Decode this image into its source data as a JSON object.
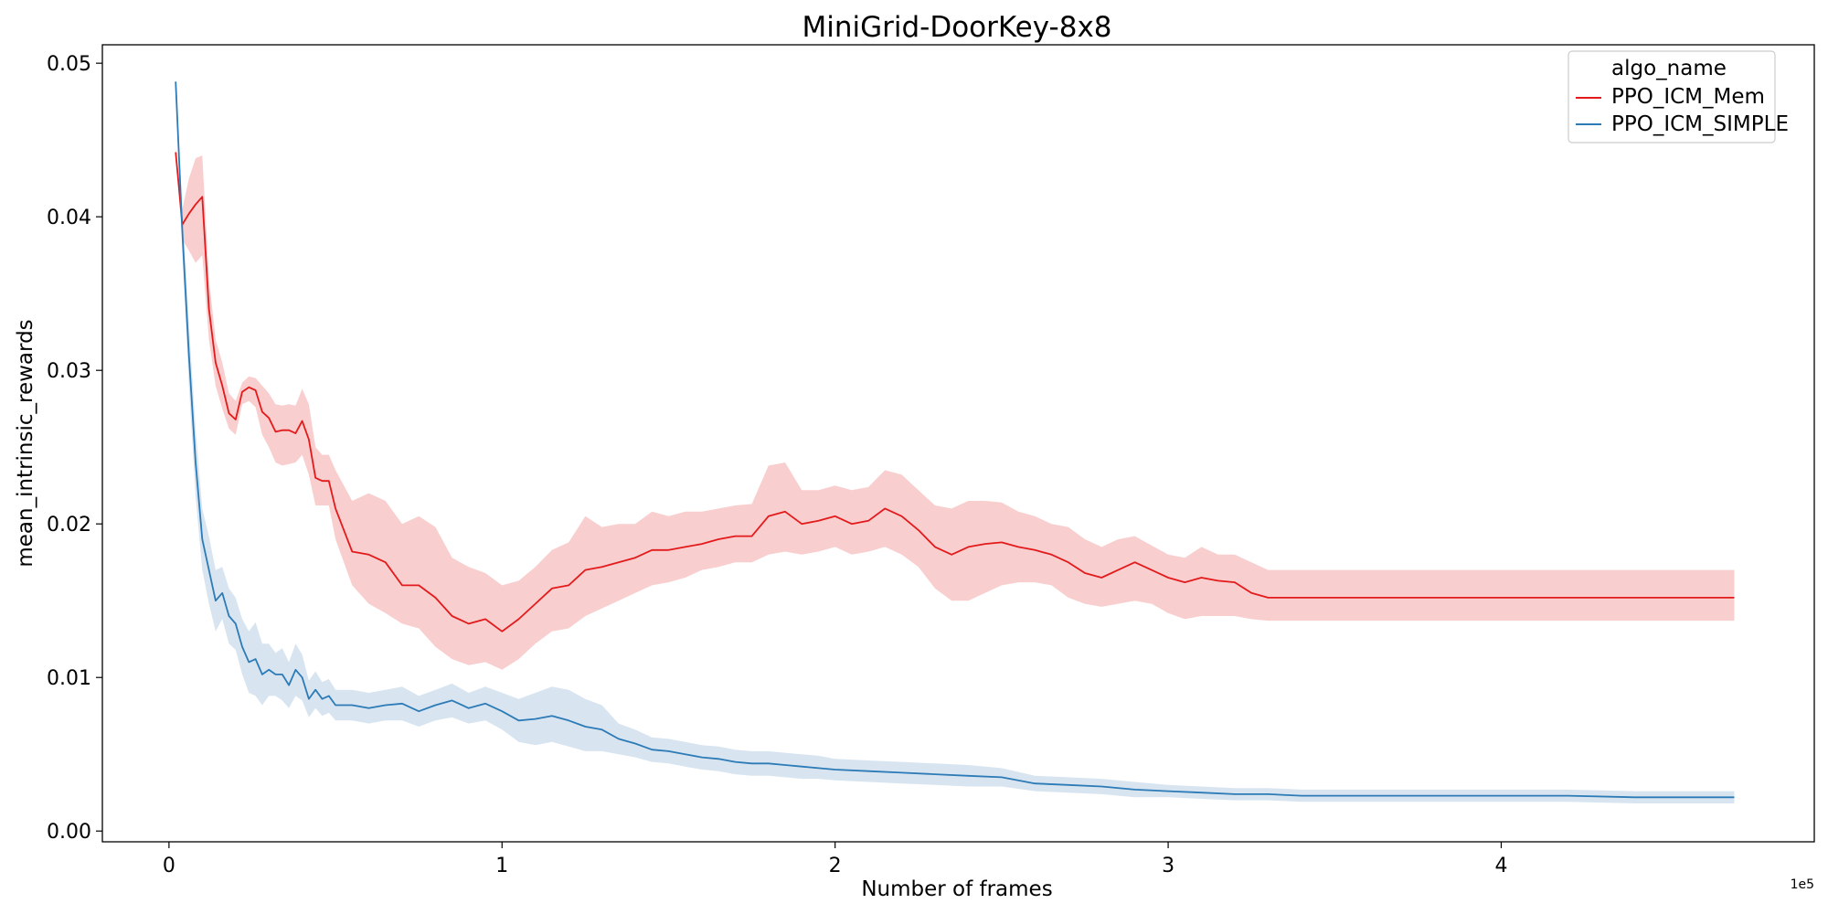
{
  "chart_data": {
    "type": "line",
    "title": "MiniGrid-DoorKey-8x8",
    "xlabel": "Number of frames",
    "ylabel": "mean_intrinsic_rewards",
    "x_offset_label": "1e5",
    "xlim": [
      -0.2,
      4.94
    ],
    "ylim": [
      -0.0007,
      0.0512
    ],
    "x_ticks": [
      0,
      1,
      2,
      3,
      4
    ],
    "y_ticks": [
      0.0,
      0.01,
      0.02,
      0.03,
      0.04,
      0.05
    ],
    "x_tick_labels": [
      "0",
      "1",
      "2",
      "3",
      "4"
    ],
    "y_tick_labels": [
      "0.00",
      "0.01",
      "0.02",
      "0.03",
      "0.04",
      "0.05"
    ],
    "grid": false,
    "legend": {
      "title": "algo_name",
      "placement": "top-right"
    },
    "series": [
      {
        "name": "PPO_ICM_Mem",
        "color": "#e31a1c",
        "band_color": "#f4a6a6",
        "x": [
          0.02,
          0.04,
          0.06,
          0.08,
          0.1,
          0.12,
          0.14,
          0.16,
          0.18,
          0.2,
          0.22,
          0.24,
          0.26,
          0.28,
          0.3,
          0.32,
          0.34,
          0.36,
          0.38,
          0.4,
          0.42,
          0.44,
          0.46,
          0.48,
          0.5,
          0.55,
          0.6,
          0.65,
          0.7,
          0.75,
          0.8,
          0.85,
          0.9,
          0.95,
          1.0,
          1.05,
          1.1,
          1.15,
          1.2,
          1.25,
          1.3,
          1.35,
          1.4,
          1.45,
          1.5,
          1.55,
          1.6,
          1.65,
          1.7,
          1.75,
          1.8,
          1.85,
          1.9,
          1.95,
          2.0,
          2.05,
          2.1,
          2.15,
          2.2,
          2.25,
          2.3,
          2.35,
          2.4,
          2.45,
          2.5,
          2.55,
          2.6,
          2.65,
          2.7,
          2.75,
          2.8,
          2.85,
          2.9,
          2.95,
          3.0,
          3.05,
          3.1,
          3.15,
          3.2,
          3.25,
          3.3,
          3.4,
          3.6,
          3.8,
          4.0,
          4.2,
          4.4,
          4.6,
          4.7
        ],
        "values": [
          0.0442,
          0.0395,
          0.0402,
          0.0408,
          0.0413,
          0.034,
          0.0305,
          0.029,
          0.0272,
          0.0268,
          0.0286,
          0.0289,
          0.0287,
          0.0273,
          0.0269,
          0.026,
          0.0261,
          0.0261,
          0.0259,
          0.0267,
          0.0255,
          0.023,
          0.0228,
          0.0228,
          0.021,
          0.0182,
          0.018,
          0.0175,
          0.016,
          0.016,
          0.0152,
          0.014,
          0.0135,
          0.0138,
          0.013,
          0.0138,
          0.0148,
          0.0158,
          0.016,
          0.017,
          0.0172,
          0.0175,
          0.0178,
          0.0183,
          0.0183,
          0.0185,
          0.0187,
          0.019,
          0.0192,
          0.0192,
          0.0205,
          0.0208,
          0.02,
          0.0202,
          0.0205,
          0.02,
          0.0202,
          0.021,
          0.0205,
          0.0196,
          0.0185,
          0.018,
          0.0185,
          0.0187,
          0.0188,
          0.0185,
          0.0183,
          0.018,
          0.0175,
          0.0168,
          0.0165,
          0.017,
          0.0175,
          0.017,
          0.0165,
          0.0162,
          0.0165,
          0.0163,
          0.0162,
          0.0155,
          0.0152,
          0.0152,
          0.0152,
          0.0152,
          0.0152,
          0.0152,
          0.0152,
          0.0152,
          0.0152
        ],
        "lower": [
          0.044,
          0.0385,
          0.0378,
          0.037,
          0.0375,
          0.032,
          0.029,
          0.0275,
          0.0262,
          0.0258,
          0.0278,
          0.028,
          0.0276,
          0.0258,
          0.025,
          0.024,
          0.0238,
          0.0239,
          0.024,
          0.0245,
          0.0232,
          0.0212,
          0.0212,
          0.0212,
          0.019,
          0.016,
          0.0148,
          0.0142,
          0.0135,
          0.0132,
          0.012,
          0.0112,
          0.0108,
          0.011,
          0.0105,
          0.0112,
          0.0122,
          0.013,
          0.0132,
          0.014,
          0.0145,
          0.015,
          0.0155,
          0.016,
          0.0162,
          0.0165,
          0.017,
          0.0172,
          0.0175,
          0.0175,
          0.018,
          0.0182,
          0.018,
          0.0182,
          0.0185,
          0.018,
          0.0182,
          0.0185,
          0.018,
          0.0172,
          0.0158,
          0.015,
          0.015,
          0.0155,
          0.016,
          0.0162,
          0.0162,
          0.016,
          0.0152,
          0.0148,
          0.0146,
          0.0148,
          0.015,
          0.0148,
          0.0142,
          0.0138,
          0.014,
          0.014,
          0.014,
          0.0138,
          0.0137,
          0.0137,
          0.0137,
          0.0137,
          0.0137,
          0.0137,
          0.0137,
          0.0137,
          0.0137
        ],
        "upper": [
          0.0445,
          0.0405,
          0.0425,
          0.0438,
          0.044,
          0.036,
          0.032,
          0.0305,
          0.0285,
          0.028,
          0.0292,
          0.0296,
          0.0295,
          0.029,
          0.0285,
          0.0278,
          0.0277,
          0.0278,
          0.0277,
          0.0288,
          0.0278,
          0.025,
          0.0245,
          0.0245,
          0.0235,
          0.0215,
          0.022,
          0.0215,
          0.02,
          0.0205,
          0.0198,
          0.0178,
          0.0172,
          0.0168,
          0.016,
          0.0163,
          0.0172,
          0.0183,
          0.0188,
          0.0205,
          0.0198,
          0.02,
          0.02,
          0.0208,
          0.0205,
          0.0208,
          0.0208,
          0.021,
          0.0212,
          0.0213,
          0.0238,
          0.024,
          0.0222,
          0.0222,
          0.0225,
          0.0222,
          0.0224,
          0.0235,
          0.0232,
          0.0222,
          0.0212,
          0.021,
          0.0215,
          0.0215,
          0.0214,
          0.0208,
          0.0205,
          0.02,
          0.0198,
          0.019,
          0.0185,
          0.019,
          0.0192,
          0.0186,
          0.018,
          0.0178,
          0.0185,
          0.018,
          0.018,
          0.0175,
          0.017,
          0.017,
          0.017,
          0.017,
          0.017,
          0.017,
          0.017,
          0.017,
          0.017
        ]
      },
      {
        "name": "PPO_ICM_SIMPLE",
        "color": "#2c7bb6",
        "band_color": "#a8c6e0",
        "x": [
          0.02,
          0.04,
          0.06,
          0.08,
          0.1,
          0.12,
          0.14,
          0.16,
          0.18,
          0.2,
          0.22,
          0.24,
          0.26,
          0.28,
          0.3,
          0.32,
          0.34,
          0.36,
          0.38,
          0.4,
          0.42,
          0.44,
          0.46,
          0.48,
          0.5,
          0.55,
          0.6,
          0.65,
          0.7,
          0.75,
          0.8,
          0.85,
          0.9,
          0.95,
          1.0,
          1.05,
          1.1,
          1.15,
          1.2,
          1.25,
          1.3,
          1.35,
          1.4,
          1.45,
          1.5,
          1.55,
          1.6,
          1.65,
          1.7,
          1.75,
          1.8,
          1.85,
          1.9,
          1.95,
          2.0,
          2.1,
          2.2,
          2.3,
          2.4,
          2.5,
          2.6,
          2.7,
          2.8,
          2.9,
          3.0,
          3.1,
          3.2,
          3.3,
          3.4,
          3.6,
          3.8,
          4.0,
          4.2,
          4.4,
          4.6,
          4.7
        ],
        "values": [
          0.0488,
          0.039,
          0.031,
          0.024,
          0.019,
          0.017,
          0.015,
          0.0155,
          0.014,
          0.0135,
          0.012,
          0.011,
          0.0112,
          0.0102,
          0.0105,
          0.0102,
          0.0102,
          0.0095,
          0.0105,
          0.01,
          0.0086,
          0.0092,
          0.0086,
          0.0088,
          0.0082,
          0.0082,
          0.008,
          0.0082,
          0.0083,
          0.0078,
          0.0082,
          0.0085,
          0.008,
          0.0083,
          0.0078,
          0.0072,
          0.0073,
          0.0075,
          0.0072,
          0.0068,
          0.0066,
          0.006,
          0.0057,
          0.0053,
          0.0052,
          0.005,
          0.0048,
          0.0047,
          0.0045,
          0.0044,
          0.0044,
          0.0043,
          0.0042,
          0.0041,
          0.004,
          0.0039,
          0.0038,
          0.0037,
          0.0036,
          0.0035,
          0.0031,
          0.003,
          0.0029,
          0.0027,
          0.0026,
          0.0025,
          0.0024,
          0.0024,
          0.0023,
          0.0023,
          0.0023,
          0.0023,
          0.0023,
          0.0022,
          0.0022,
          0.0022
        ],
        "lower": [
          0.0485,
          0.0375,
          0.029,
          0.0218,
          0.017,
          0.0148,
          0.013,
          0.0138,
          0.0122,
          0.0118,
          0.0102,
          0.009,
          0.0088,
          0.0082,
          0.0088,
          0.0088,
          0.0085,
          0.008,
          0.0088,
          0.0085,
          0.0074,
          0.008,
          0.0075,
          0.0077,
          0.0072,
          0.0072,
          0.007,
          0.0072,
          0.0072,
          0.0068,
          0.0072,
          0.0074,
          0.007,
          0.0072,
          0.0066,
          0.0058,
          0.0056,
          0.0058,
          0.0055,
          0.0052,
          0.0052,
          0.005,
          0.0048,
          0.0045,
          0.0044,
          0.0042,
          0.004,
          0.0039,
          0.0037,
          0.0036,
          0.0036,
          0.0035,
          0.0034,
          0.0034,
          0.0033,
          0.0032,
          0.0031,
          0.003,
          0.0029,
          0.0029,
          0.0026,
          0.0025,
          0.0024,
          0.0022,
          0.0022,
          0.0021,
          0.002,
          0.002,
          0.0019,
          0.0019,
          0.0019,
          0.0019,
          0.0019,
          0.0018,
          0.0018,
          0.0018
        ],
        "upper": [
          0.049,
          0.0405,
          0.033,
          0.0262,
          0.021,
          0.0192,
          0.017,
          0.0172,
          0.0158,
          0.0152,
          0.0138,
          0.013,
          0.0136,
          0.0122,
          0.0122,
          0.0116,
          0.0119,
          0.011,
          0.0122,
          0.0115,
          0.0098,
          0.0104,
          0.0097,
          0.0099,
          0.0092,
          0.0092,
          0.009,
          0.0092,
          0.0094,
          0.0088,
          0.0092,
          0.0096,
          0.009,
          0.0094,
          0.009,
          0.0086,
          0.009,
          0.0094,
          0.0092,
          0.0086,
          0.0082,
          0.007,
          0.0066,
          0.0061,
          0.006,
          0.0058,
          0.0056,
          0.0055,
          0.0053,
          0.0052,
          0.0052,
          0.0051,
          0.005,
          0.0049,
          0.0047,
          0.0046,
          0.0045,
          0.0044,
          0.0043,
          0.0041,
          0.0036,
          0.0035,
          0.0034,
          0.0032,
          0.003,
          0.0029,
          0.0028,
          0.0028,
          0.0027,
          0.0027,
          0.0027,
          0.0027,
          0.0027,
          0.0026,
          0.0026,
          0.0026
        ]
      }
    ]
  }
}
